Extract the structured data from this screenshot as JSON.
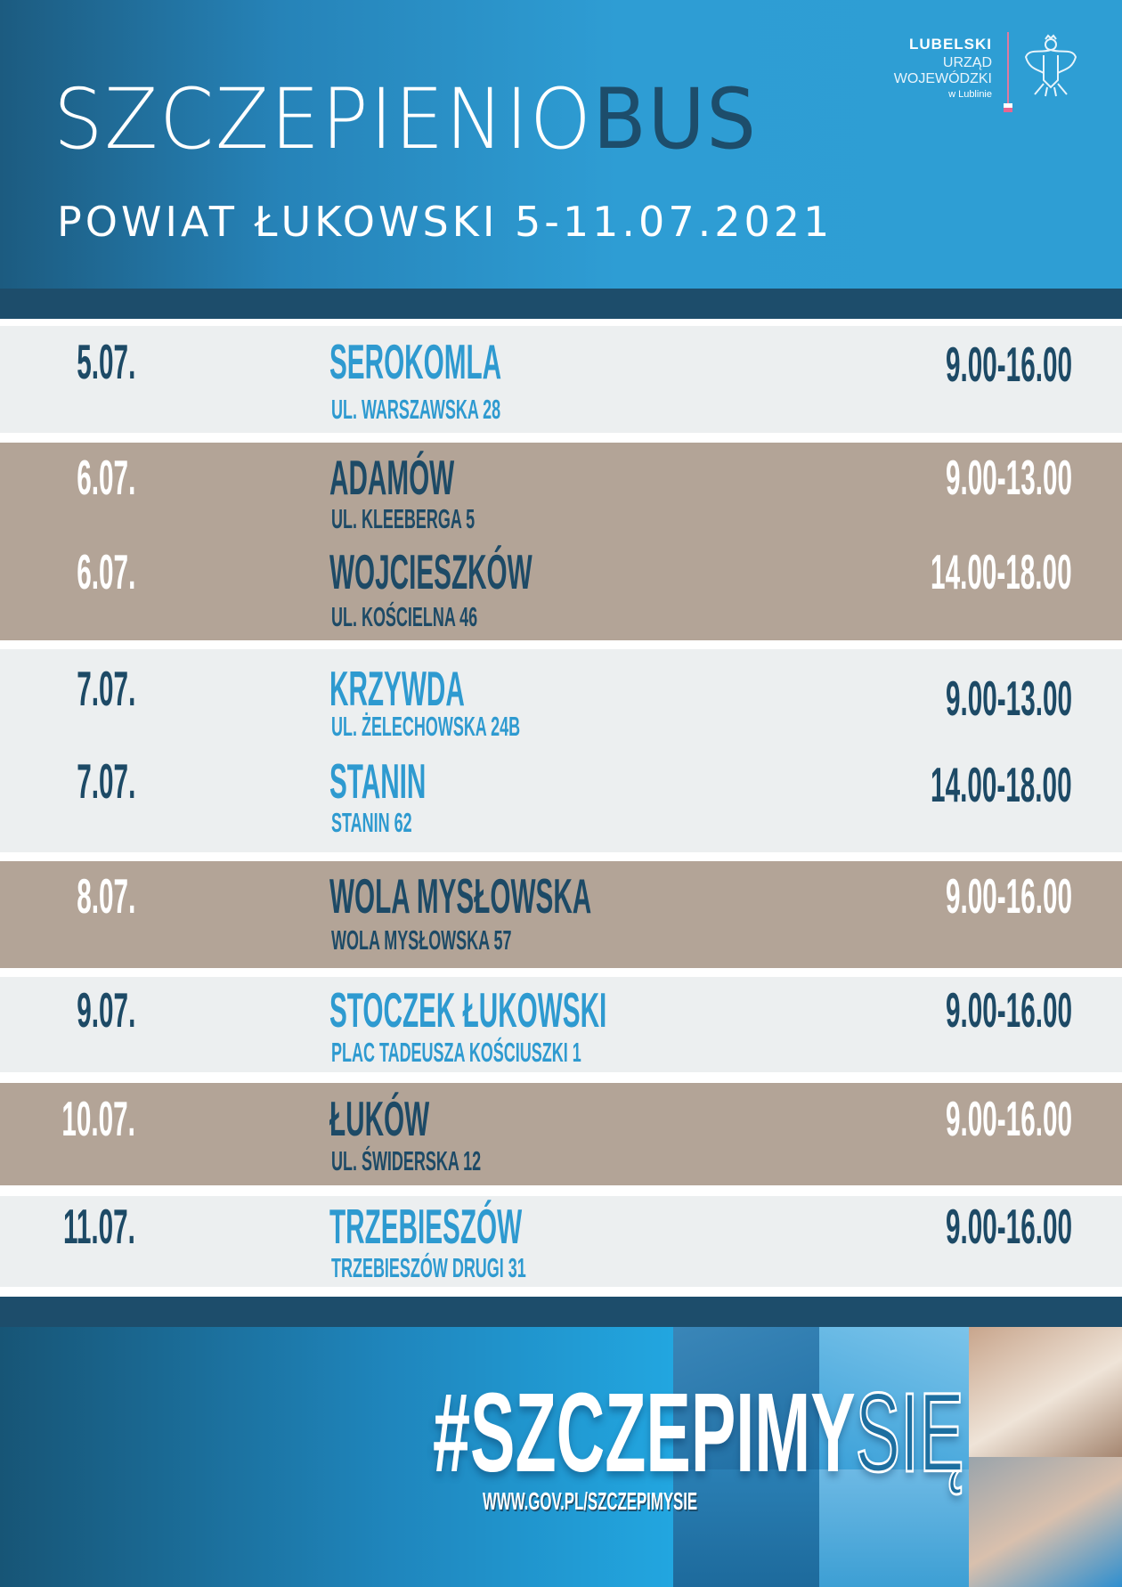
{
  "header": {
    "title_light": "SZCZEPIENIO",
    "title_dark": "BUS",
    "subtitle": "POWIAT ŁUKOWSKI  5-11.07.2021",
    "logo": {
      "line1": "LUBELSKI",
      "line2": "URZĄD",
      "line3": "WOJEWÓDZKI",
      "line4": "w Lublinie",
      "emblem": "polish-eagle-icon"
    }
  },
  "colors": {
    "header_blue": "#2e9ed4",
    "navy": "#1d4d6b",
    "light_row": "#eceff0",
    "tan_row": "#b3a497",
    "accent_blue": "#2e9ad0"
  },
  "schedule": [
    {
      "date": "5.07.",
      "place": "SEROKOMLA",
      "address": "UL. WARSZAWSKA 28",
      "hours": "9.00-16.00"
    },
    {
      "date": "6.07.",
      "place": "ADAMÓW",
      "address": "UL. KLEEBERGA 5",
      "hours": "9.00-13.00"
    },
    {
      "date": "6.07.",
      "place": "WOJCIESZKÓW",
      "address": "UL. KOŚCIELNA 46",
      "hours": "14.00-18.00"
    },
    {
      "date": "7.07.",
      "place": "KRZYWDA",
      "address": "UL. ŻELECHOWSKA 24B",
      "hours": "9.00-13.00"
    },
    {
      "date": "7.07.",
      "place": "STANIN",
      "address": "STANIN 62",
      "hours": "14.00-18.00"
    },
    {
      "date": "8.07.",
      "place": "WOLA MYSŁOWSKA",
      "address": "WOLA MYSŁOWSKA 57",
      "hours": "9.00-16.00"
    },
    {
      "date": "9.07.",
      "place": "STOCZEK ŁUKOWSKI",
      "address": "PLAC TADEUSZA KOŚCIUSZKI 1",
      "hours": "9.00-16.00"
    },
    {
      "date": "10.07.",
      "place": "ŁUKÓW",
      "address": "UL. ŚWIDERSKA 12",
      "hours": "9.00-16.00"
    },
    {
      "date": "11.07.",
      "place": "TRZEBIESZÓW",
      "address": "TRZEBIESZÓW DRUGI 31",
      "hours": "9.00-16.00"
    }
  ],
  "footer": {
    "hashtag_solid": "#SZCZEPIMY",
    "hashtag_outline": "SIĘ",
    "url": "WWW.GOV.PL/SZCZEPIMYSIE"
  }
}
